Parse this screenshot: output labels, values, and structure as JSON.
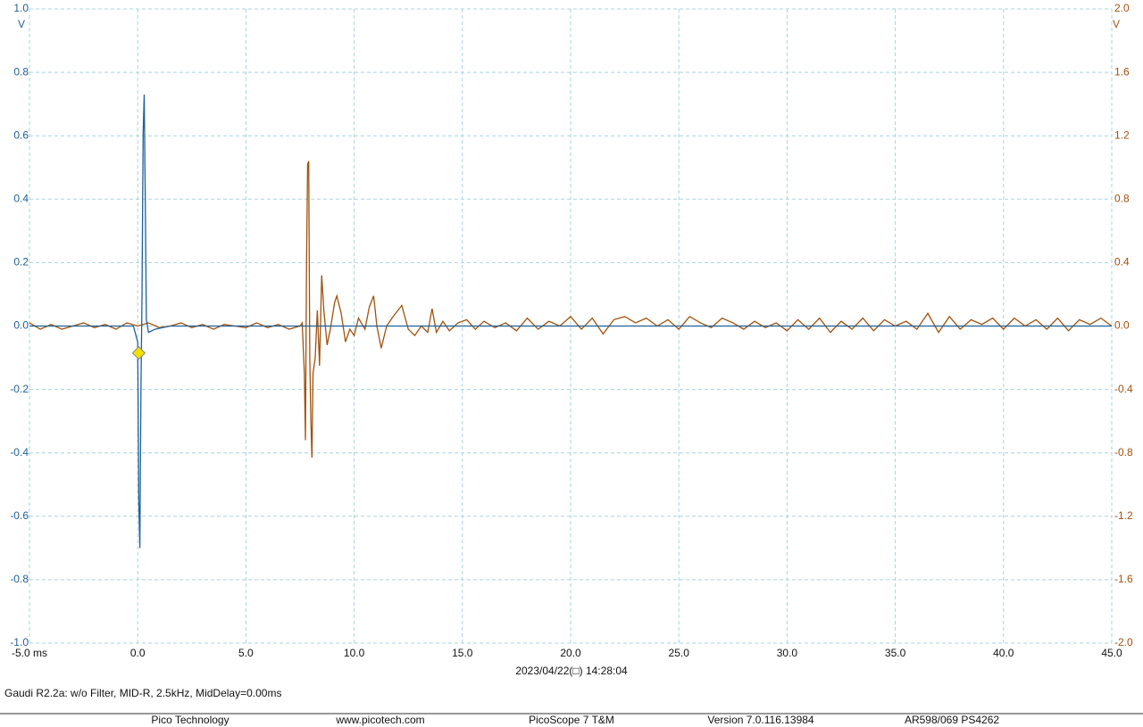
{
  "chart_data": {
    "type": "line",
    "xlim": [
      -5,
      45
    ],
    "xticks": [
      {
        "value": -5,
        "label": "-5.0 ms"
      },
      {
        "value": 0,
        "label": "0.0"
      },
      {
        "value": 5,
        "label": "5.0"
      },
      {
        "value": 10,
        "label": "10.0"
      },
      {
        "value": 15,
        "label": "15.0"
      },
      {
        "value": 20,
        "label": "20.0"
      },
      {
        "value": 25,
        "label": "25.0"
      },
      {
        "value": 30,
        "label": "30.0"
      },
      {
        "value": 35,
        "label": "35.0"
      },
      {
        "value": 40,
        "label": "40.0"
      },
      {
        "value": 45,
        "label": "45.0"
      }
    ],
    "ylim": [
      -1,
      1
    ],
    "yticks": [
      {
        "value": 1,
        "label": "1.0"
      },
      {
        "value": 0.8,
        "label": "0.8"
      },
      {
        "value": 0.6,
        "label": "0.6"
      },
      {
        "value": 0.4,
        "label": "0.4"
      },
      {
        "value": 0.2,
        "label": "0.2"
      },
      {
        "value": 0,
        "label": "0.0"
      },
      {
        "value": -0.2,
        "label": "-0.2"
      },
      {
        "value": -0.4,
        "label": "-0.4"
      },
      {
        "value": -0.6,
        "label": "-0.6"
      },
      {
        "value": -0.8,
        "label": "-0.8"
      },
      {
        "value": -1,
        "label": "-1.0"
      }
    ],
    "y_unit": "V",
    "y2lim": [
      -2,
      2
    ],
    "y2ticks": [
      {
        "value": 2,
        "label": "2.0"
      },
      {
        "value": 1.6,
        "label": "1.6"
      },
      {
        "value": 1.2,
        "label": "1.2"
      },
      {
        "value": 0.8,
        "label": "0.8"
      },
      {
        "value": 0.4,
        "label": "0.4"
      },
      {
        "value": 0,
        "label": "0.0"
      },
      {
        "value": -0.4,
        "label": "-0.4"
      },
      {
        "value": -0.8,
        "label": "-0.8"
      },
      {
        "value": -1.2,
        "label": "-1.2"
      },
      {
        "value": -1.6,
        "label": "-1.6"
      },
      {
        "value": -2,
        "label": "-2.0"
      }
    ],
    "y2_unit": "V",
    "grid": true,
    "x_caption": "2023/04/22(□) 14:28:04",
    "trigger": {
      "x": 0.05,
      "y": -0.085
    },
    "series": [
      {
        "color": "#a0520f",
        "axis": "y2",
        "x": [
          -5,
          -4.5,
          -4,
          -3.5,
          -3,
          -2.5,
          -2,
          -1.5,
          -1,
          -0.5,
          0,
          0.5,
          1,
          1.5,
          2,
          2.5,
          3,
          3.5,
          4,
          4.5,
          5,
          5.5,
          6,
          6.5,
          7,
          7.5,
          7.6,
          7.7,
          7.75,
          7.8,
          7.85,
          7.9,
          7.95,
          8.0,
          8.05,
          8.1,
          8.2,
          8.3,
          8.4,
          8.5,
          8.6,
          8.75,
          8.9,
          9.1,
          9.2,
          9.4,
          9.6,
          9.8,
          10.0,
          10.2,
          10.5,
          10.7,
          10.9,
          11.05,
          11.25,
          11.5,
          11.8,
          12.2,
          12.5,
          12.8,
          13.1,
          13.4,
          13.6,
          13.8,
          14.1,
          14.4,
          14.8,
          15.2,
          15.6,
          16,
          16.5,
          17,
          17.5,
          18,
          18.5,
          19,
          19.5,
          20,
          20.5,
          21,
          21.5,
          22,
          22.5,
          23,
          23.5,
          24,
          24.5,
          25,
          25.5,
          26,
          26.5,
          27,
          27.5,
          28,
          28.5,
          29,
          29.5,
          30,
          30.5,
          31,
          31.5,
          32,
          32.5,
          33,
          33.5,
          34,
          34.5,
          35,
          35.5,
          36,
          36.5,
          37,
          37.5,
          38,
          38.5,
          39,
          39.5,
          40,
          40.5,
          41,
          41.5,
          42,
          42.5,
          43,
          43.5,
          44,
          44.5,
          45
        ],
        "values": [
          0.02,
          -0.02,
          0.01,
          -0.02,
          0.0,
          0.02,
          -0.01,
          0.01,
          -0.02,
          0.02,
          0.0,
          0.02,
          -0.01,
          0.0,
          0.02,
          -0.01,
          0.01,
          -0.02,
          0.01,
          0.0,
          -0.01,
          0.02,
          -0.01,
          0.01,
          -0.02,
          0.0,
          0.02,
          -0.3,
          -0.72,
          0.4,
          1.02,
          1.04,
          -0.2,
          -0.6,
          -0.83,
          -0.3,
          -0.2,
          0.1,
          -0.25,
          0.32,
          0.1,
          -0.12,
          -0.02,
          0.15,
          0.19,
          0.08,
          -0.1,
          -0.02,
          -0.06,
          0.05,
          -0.02,
          0.12,
          0.19,
          0.0,
          -0.14,
          0.0,
          0.06,
          0.13,
          -0.02,
          -0.06,
          0.0,
          -0.04,
          0.11,
          -0.04,
          0.03,
          -0.03,
          0.02,
          0.04,
          -0.02,
          0.03,
          -0.01,
          0.02,
          -0.03,
          0.05,
          -0.02,
          0.03,
          0.0,
          0.06,
          -0.02,
          0.05,
          -0.05,
          0.04,
          0.06,
          0.02,
          0.05,
          0.0,
          0.04,
          -0.02,
          0.06,
          0.02,
          -0.01,
          0.05,
          0.02,
          -0.02,
          0.03,
          -0.01,
          0.02,
          -0.03,
          0.04,
          -0.02,
          0.05,
          -0.04,
          0.03,
          -0.02,
          0.05,
          -0.03,
          0.04,
          0.0,
          0.03,
          -0.02,
          0.08,
          -0.04,
          0.06,
          -0.02,
          0.04,
          0.01,
          0.05,
          -0.02,
          0.05,
          0.0,
          0.04,
          -0.02,
          0.05,
          -0.03,
          0.04,
          0.01,
          0.05,
          0.0
        ]
      },
      {
        "color": "#1f5f99",
        "x": [
          -5,
          -0.2,
          0.0,
          0.05,
          0.1,
          0.15,
          0.2,
          0.25,
          0.3,
          0.35,
          0.4,
          0.5,
          0.8,
          1.5,
          45
        ],
        "values": [
          0,
          0,
          -0.05,
          -0.55,
          -0.7,
          -0.2,
          0.1,
          0.6,
          0.73,
          0.4,
          0.02,
          -0.02,
          -0.01,
          0,
          0
        ]
      }
    ]
  },
  "info_line": "Gaudi R2.2a: w/o Filter, MID-R, 2.5kHz, MidDelay=0.00ms",
  "footer": [
    "Pico Technology",
    "www.picotech.com",
    "PicoScope 7 T&M",
    "Version 7.0.116.13984",
    "AR598/069 PS4262"
  ]
}
